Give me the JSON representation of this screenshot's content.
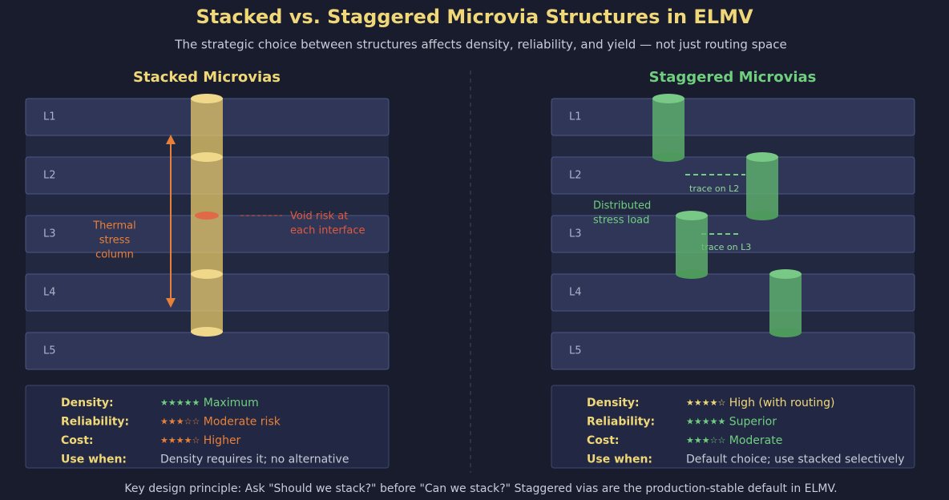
{
  "title": "Stacked vs. Staggered Microvia Structures in ELMV",
  "subtitle": "The strategic choice between structures affects density, reliability, and yield — not just routing space",
  "panels": [
    {
      "heading": "Stacked Microvias",
      "layers": [
        "L1",
        "L2",
        "L3",
        "L4",
        "L5"
      ],
      "annotations": [
        {
          "lines": [
            "Thermal",
            "stress",
            "column"
          ]
        },
        {
          "lines": [
            "Void risk at",
            "each interface"
          ]
        }
      ],
      "table": [
        {
          "label": "Density:",
          "stars": "★★★★★",
          "text": "Maximum"
        },
        {
          "label": "Reliability:",
          "stars": "★★★☆☆",
          "text": "Moderate risk"
        },
        {
          "label": "Cost:",
          "stars": "★★★★☆",
          "text": "Higher"
        },
        {
          "label": "Use when:",
          "text": "Density requires it; no alternative"
        }
      ]
    },
    {
      "heading": "Staggered Microvias",
      "layers": [
        "L1",
        "L2",
        "L3",
        "L4",
        "L5"
      ],
      "annotations": [
        {
          "lines": [
            "Distributed",
            "stress load"
          ]
        },
        {
          "lines": [
            "trace on L2"
          ]
        },
        {
          "lines": [
            "trace on L3"
          ]
        }
      ],
      "table": [
        {
          "label": "Density:",
          "stars": "★★★★☆",
          "text": "High (with routing)"
        },
        {
          "label": "Reliability:",
          "stars": "★★★★★",
          "text": "Superior"
        },
        {
          "label": "Cost:",
          "stars": "★★★☆☆",
          "text": "Moderate"
        },
        {
          "label": "Use when:",
          "text": "Default choice; use stacked selectively"
        }
      ]
    }
  ],
  "footer": "Key design principle: Ask \"Should we stack?\" before \"Can we stack?\" Staggered vias are the production-stable default in ELMV."
}
